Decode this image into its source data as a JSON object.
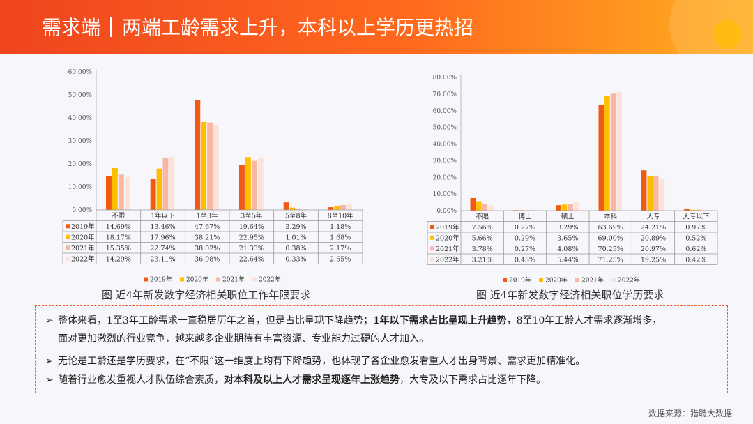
{
  "header": {
    "part1": "需求端",
    "part2": "两端工龄需求上升，本科以上学历更热招"
  },
  "colors": {
    "2019": "#f25a14",
    "2020": "#ffbe00",
    "2021": "#f7b7a4",
    "2022": "#fbe3da",
    "accent": "#f05a28"
  },
  "chart_data": [
    {
      "type": "bar",
      "caption": "图 近4年新发数字经济相关职位工作年限要求",
      "categories": [
        "不限",
        "1年以下",
        "1至3年",
        "3至5年",
        "5至8年",
        "8至10年"
      ],
      "ylim": [
        0,
        60
      ],
      "yticks": [
        "0.00%",
        "10.00%",
        "20.00%",
        "30.00%",
        "40.00%",
        "50.00%",
        "60.00%"
      ],
      "series": [
        {
          "name": "2019年",
          "values": [
            14.69,
            13.46,
            47.67,
            19.64,
            3.29,
            1.18
          ],
          "labels": [
            "14.69%",
            "13.46%",
            "47.67%",
            "19.64%",
            "3.29%",
            "1.18%"
          ]
        },
        {
          "name": "2020年",
          "values": [
            18.17,
            17.96,
            38.21,
            22.95,
            1.01,
            1.68
          ],
          "labels": [
            "18.17%",
            "17.96%",
            "38.21%",
            "22.95%",
            "1.01%",
            "1.68%"
          ]
        },
        {
          "name": "2021年",
          "values": [
            15.35,
            22.74,
            38.02,
            21.33,
            0.38,
            2.17
          ],
          "labels": [
            "15.35%",
            "22.74%",
            "38.02%",
            "21.33%",
            "0.38%",
            "2.17%"
          ]
        },
        {
          "name": "2022年",
          "values": [
            14.29,
            23.11,
            36.98,
            22.64,
            0.33,
            2.65
          ],
          "labels": [
            "14.29%",
            "23.11%",
            "36.98%",
            "22.64%",
            "0.33%",
            "2.65%"
          ]
        }
      ]
    },
    {
      "type": "bar",
      "caption": "图 近4年新发数字经济相关职位学历要求",
      "categories": [
        "不限",
        "博士",
        "硕士",
        "本科",
        "大专",
        "大专以下"
      ],
      "ylim": [
        0,
        80
      ],
      "yticks": [
        "0.00%",
        "10.00%",
        "20.00%",
        "30.00%",
        "40.00%",
        "50.00%",
        "60.00%",
        "70.00%",
        "80.00%"
      ],
      "series": [
        {
          "name": "2019年",
          "values": [
            7.56,
            0.27,
            3.29,
            63.69,
            24.21,
            0.97
          ],
          "labels": [
            "7.56%",
            "0.27%",
            "3.29%",
            "63.69%",
            "24.21%",
            "0.97%"
          ]
        },
        {
          "name": "2020年",
          "values": [
            5.66,
            0.29,
            3.65,
            69.0,
            20.89,
            0.52
          ],
          "labels": [
            "5.66%",
            "0.29%",
            "3.65%",
            "69.00%",
            "20.89%",
            "0.52%"
          ]
        },
        {
          "name": "2021年",
          "values": [
            3.78,
            0.27,
            4.08,
            70.25,
            20.97,
            0.62
          ],
          "labels": [
            "3.78%",
            "0.27%",
            "4.08%",
            "70.25%",
            "20.97%",
            "0.62%"
          ]
        },
        {
          "name": "2022年",
          "values": [
            3.21,
            0.43,
            5.44,
            71.25,
            19.25,
            0.42
          ],
          "labels": [
            "3.21%",
            "0.43%",
            "5.44%",
            "71.25%",
            "19.25%",
            "0.42%"
          ]
        }
      ]
    }
  ],
  "summary": {
    "bullet1_a": "整体来看，1至3年工龄需求一直稳居历年之首，但是占比呈现下降趋势；",
    "bullet1_hl": "1年以下需求占比呈现上升趋势",
    "bullet1_b": "，8至10年工龄人才需求逐渐增多，",
    "bullet1_c": "面对更加激烈的行业竞争，越来越多企业期待有丰富资源、专业能力过硬的人才加入。",
    "bullet2": "无论是工龄还是学历要求，在“不限”这一维度上均有下降趋势，也体现了各企业愈发看重人才出身背景、需求更加精准化。",
    "bullet3_a": "随着行业愈发重视人才队伍综合素质，",
    "bullet3_hl": "对本科及以上人才需求呈现逐年上涨趋势",
    "bullet3_b": "，大专及以下需求占比逐年下降。",
    "arrow": "➢"
  },
  "source": "数据来源：猎聘大数据"
}
